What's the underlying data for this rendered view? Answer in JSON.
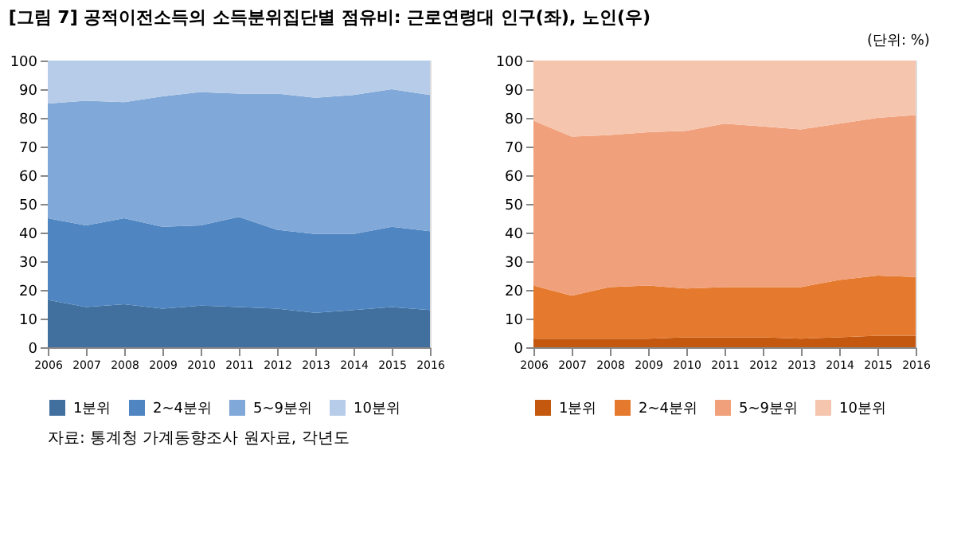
{
  "chart_data": [
    {
      "type": "area",
      "title": "[그림 7] 공적이전소득의 소득분위집단별 점유비: 근로연령대 인구(좌), 노인(우)",
      "annotations": [
        "자료: 통계청 가계동향조사 원자료, 각년도"
      ],
      "stacked": true,
      "legend": "bottom",
      "x": [
        2006,
        2007,
        2008,
        2009,
        2010,
        2011,
        2012,
        2013,
        2014,
        2015,
        2016
      ],
      "xlim": [
        2006,
        2016
      ],
      "xticks": [
        2006,
        2007,
        2008,
        2009,
        2010,
        2011,
        2012,
        2013,
        2014,
        2015,
        2016
      ],
      "ylim": [
        0,
        100
      ],
      "yticks": [
        0,
        10,
        20,
        30,
        40,
        50,
        60,
        70,
        80,
        90,
        100
      ],
      "series": [
        {
          "name": "1분위",
          "color": "#41709f",
          "values": [
            16.5,
            14,
            15,
            13.5,
            14.5,
            14,
            13.5,
            12,
            13,
            14,
            13
          ]
        },
        {
          "name": "2~4분위",
          "color": "#4f86c2",
          "values": [
            28.5,
            28.5,
            30,
            28.5,
            28,
            31.5,
            27.5,
            27.5,
            26.5,
            28,
            27.5
          ]
        },
        {
          "name": "5~9분위",
          "color": "#80a8d8",
          "values": [
            40,
            43.5,
            40.5,
            45.5,
            46.5,
            43,
            47.5,
            47.5,
            48.5,
            48,
            47.5
          ]
        },
        {
          "name": "10분위",
          "color": "#b7cce8",
          "values": [
            15,
            14,
            14.5,
            12.5,
            11,
            11.5,
            11.5,
            13,
            12,
            10,
            12
          ]
        }
      ]
    },
    {
      "type": "area",
      "annotations": [
        "(단위: %)"
      ],
      "stacked": true,
      "legend": "bottom",
      "x": [
        2006,
        2007,
        2008,
        2009,
        2010,
        2011,
        2012,
        2013,
        2014,
        2015,
        2016
      ],
      "xlim": [
        2006,
        2016
      ],
      "xticks": [
        2006,
        2007,
        2008,
        2009,
        2010,
        2011,
        2012,
        2013,
        2014,
        2015,
        2016
      ],
      "ylim": [
        0,
        100
      ],
      "yticks": [
        0,
        10,
        20,
        30,
        40,
        50,
        60,
        70,
        80,
        90,
        100
      ],
      "series": [
        {
          "name": "1분위",
          "color": "#c4580f",
          "values": [
            3,
            3,
            3,
            3,
            3.5,
            3.5,
            3.5,
            3,
            3.5,
            4,
            4
          ]
        },
        {
          "name": "2~4분위",
          "color": "#e57a2e",
          "values": [
            18.5,
            15,
            18,
            18.5,
            17,
            17.5,
            17.5,
            18,
            20,
            21,
            20.5
          ]
        },
        {
          "name": "5~9분위",
          "color": "#f0a07a",
          "values": [
            57.5,
            55.5,
            53,
            53.5,
            55,
            57,
            56,
            55,
            54.5,
            55,
            56.5
          ]
        },
        {
          "name": "10분위",
          "color": "#f6c5ae",
          "values": [
            21,
            26.5,
            26,
            25,
            24.5,
            22,
            23,
            24,
            22,
            20,
            19
          ]
        }
      ]
    }
  ]
}
